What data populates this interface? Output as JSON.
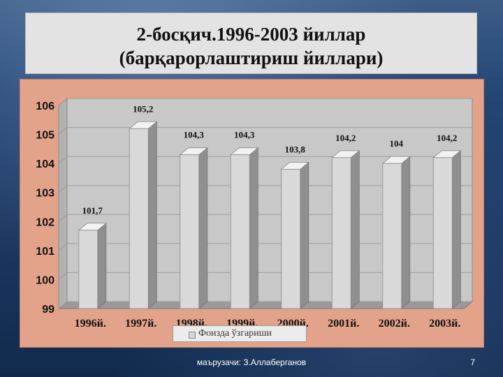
{
  "slide": {
    "title_line1": "2-босқич.1996-2003 йиллар",
    "title_line2": "(барқарорлаштириш  йиллари)",
    "footer": "маърузачи: З.Аллаберганов",
    "page_number": "7"
  },
  "colors": {
    "panel_background": "#e3a38a",
    "plot_wall": "#c8c8c8",
    "bar_front": "#d9d9d9",
    "bar_side": "#8f8f8f",
    "bar_top": "#f2f2f2",
    "slide_background": "#1d3a64"
  },
  "chart_data": {
    "type": "bar",
    "categories": [
      "1996й.",
      "1997й.",
      "1998й.",
      "1999й.",
      "2000й.",
      "2001й.",
      "2002й.",
      "2003й."
    ],
    "values": [
      101.7,
      105.2,
      104.3,
      104.3,
      103.8,
      104.2,
      104,
      104.2
    ],
    "value_labels": [
      "101,7",
      "105,2",
      "104,3",
      "104,3",
      "103,8",
      "104,2",
      "104",
      "104,2"
    ],
    "series": [
      {
        "name": "Фоизда ўзгариши",
        "values": [
          101.7,
          105.2,
          104.3,
          104.3,
          103.8,
          104.2,
          104,
          104.2
        ]
      }
    ],
    "y_ticks": [
      "99",
      "100",
      "101",
      "102",
      "103",
      "104",
      "105",
      "106"
    ],
    "ylim": [
      99,
      106
    ],
    "grid": true,
    "three_d": true,
    "legend_position": "bottom"
  }
}
